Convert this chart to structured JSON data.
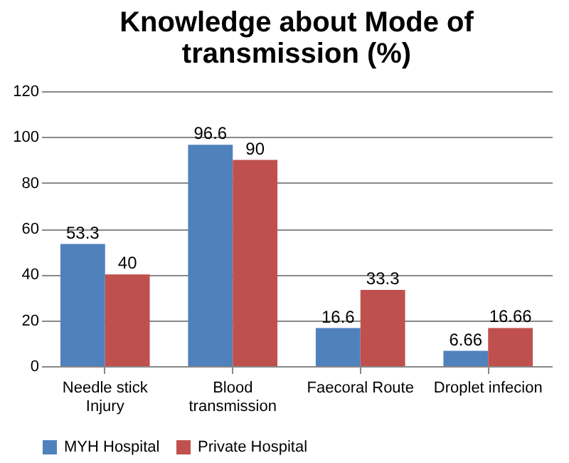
{
  "chart_data": {
    "type": "bar",
    "title": "Knowledge about Mode of transmission (%)",
    "categories": [
      "Needle stick Injury",
      "Blood transmission",
      "Faecoral Route",
      "Droplet infecion"
    ],
    "series": [
      {
        "name": "MYH Hospital",
        "color": "#4f81bd",
        "values": [
          53.3,
          96.6,
          16.6,
          6.66
        ]
      },
      {
        "name": "Private Hospital",
        "color": "#c0504d",
        "values": [
          40,
          90,
          33.3,
          16.66
        ]
      }
    ],
    "ylim": [
      0,
      120
    ],
    "yticks": [
      0,
      20,
      40,
      60,
      80,
      100,
      120
    ],
    "grid": "y",
    "legend": "bottom",
    "data_labels": true
  }
}
